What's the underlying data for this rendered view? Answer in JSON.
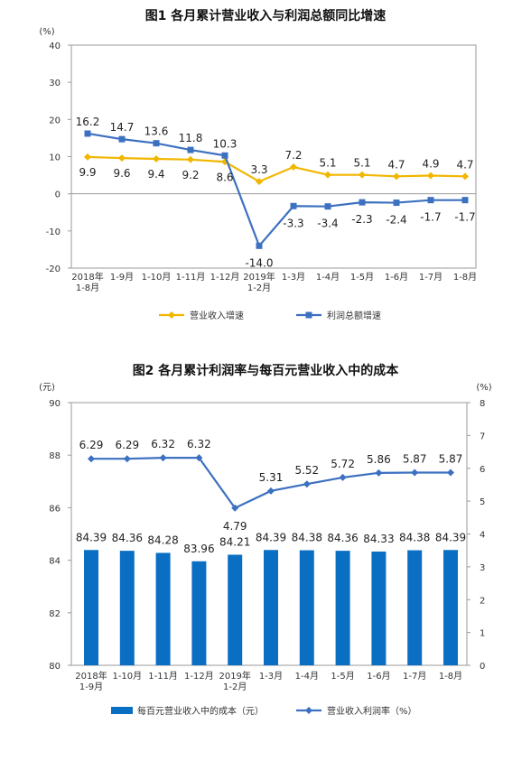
{
  "chart_data": [
    {
      "type": "line",
      "title": "图1  各月累计营业收入与利润总额同比增速",
      "ylabel": "(%)",
      "ylim": [
        -20,
        40
      ],
      "yticks": [
        40,
        30,
        20,
        10,
        0,
        -10,
        -20
      ],
      "categories": [
        [
          "2018年",
          "1-8月"
        ],
        [
          "1-9月"
        ],
        [
          "1-10月"
        ],
        [
          "1-11月"
        ],
        [
          "1-12月"
        ],
        [
          "2019年",
          "1-2月"
        ],
        [
          "1-3月"
        ],
        [
          "1-4月"
        ],
        [
          "1-5月"
        ],
        [
          "1-6月"
        ],
        [
          "1-7月"
        ],
        [
          "1-8月"
        ]
      ],
      "series": [
        {
          "name": "营业收入增速",
          "color": "#F2B600",
          "marker": "diamond",
          "values": [
            9.9,
            9.6,
            9.4,
            9.2,
            8.6,
            3.3,
            7.2,
            5.1,
            5.1,
            4.7,
            4.9,
            4.7
          ],
          "labels": [
            "9.9",
            "9.6",
            "9.4",
            "9.2",
            "8.6",
            "3.3",
            "7.2",
            "5.1",
            "5.1",
            "4.7",
            "4.9",
            "4.7"
          ]
        },
        {
          "name": "利润总额增速",
          "color": "#3C70C0",
          "marker": "square",
          "values": [
            16.2,
            14.7,
            13.6,
            11.8,
            10.3,
            -14.0,
            -3.3,
            -3.4,
            -2.3,
            -2.4,
            -1.7,
            -1.7
          ],
          "labels": [
            "16.2",
            "14.7",
            "13.6",
            "11.8",
            "10.3",
            "-14.0",
            "-3.3",
            "-3.4",
            "-2.3",
            "-2.4",
            "-1.7",
            "-1.7"
          ]
        }
      ],
      "legend_position": "bottom",
      "grid": false
    },
    {
      "type": "bar+line",
      "title": "图2  各月累计利润率与每百元营业收入中的成本",
      "ylabel_left": "(元)",
      "ylabel_right": "(%)",
      "ylim_left": [
        80,
        90
      ],
      "ylim_right": [
        0,
        8
      ],
      "yticks_left": [
        90,
        88,
        86,
        84,
        82,
        80
      ],
      "yticks_right": [
        8,
        7,
        6,
        5,
        4,
        3,
        2,
        1,
        0
      ],
      "categories": [
        [
          "2018年",
          "1-9月"
        ],
        [
          "1-10月"
        ],
        [
          "1-11月"
        ],
        [
          "1-12月"
        ],
        [
          "2019年",
          "1-2月"
        ],
        [
          "1-3月"
        ],
        [
          "1-4月"
        ],
        [
          "1-5月"
        ],
        [
          "1-6月"
        ],
        [
          "1-7月"
        ],
        [
          "1-8月"
        ]
      ],
      "series": [
        {
          "name": "每百元营业收入中的成本（元）",
          "color": "#0A6FC2",
          "axis": "left",
          "kind": "bar",
          "values": [
            84.39,
            84.36,
            84.28,
            83.96,
            84.21,
            84.39,
            84.38,
            84.36,
            84.33,
            84.38,
            84.39
          ],
          "labels": [
            "84.39",
            "84.36",
            "84.28",
            "83.96",
            "84.21",
            "84.39",
            "84.38",
            "84.36",
            "84.33",
            "84.38",
            "84.39"
          ]
        },
        {
          "name": "营业收入利润率（%）",
          "color": "#3C70C0",
          "axis": "right",
          "kind": "line",
          "values": [
            6.29,
            6.29,
            6.32,
            6.32,
            4.79,
            5.31,
            5.52,
            5.72,
            5.86,
            5.87,
            5.87
          ],
          "labels": [
            "6.29",
            "6.29",
            "6.32",
            "6.32",
            "4.79",
            "5.31",
            "5.52",
            "5.72",
            "5.86",
            "5.87",
            "5.87"
          ]
        }
      ],
      "legend_position": "bottom",
      "grid": false
    }
  ]
}
